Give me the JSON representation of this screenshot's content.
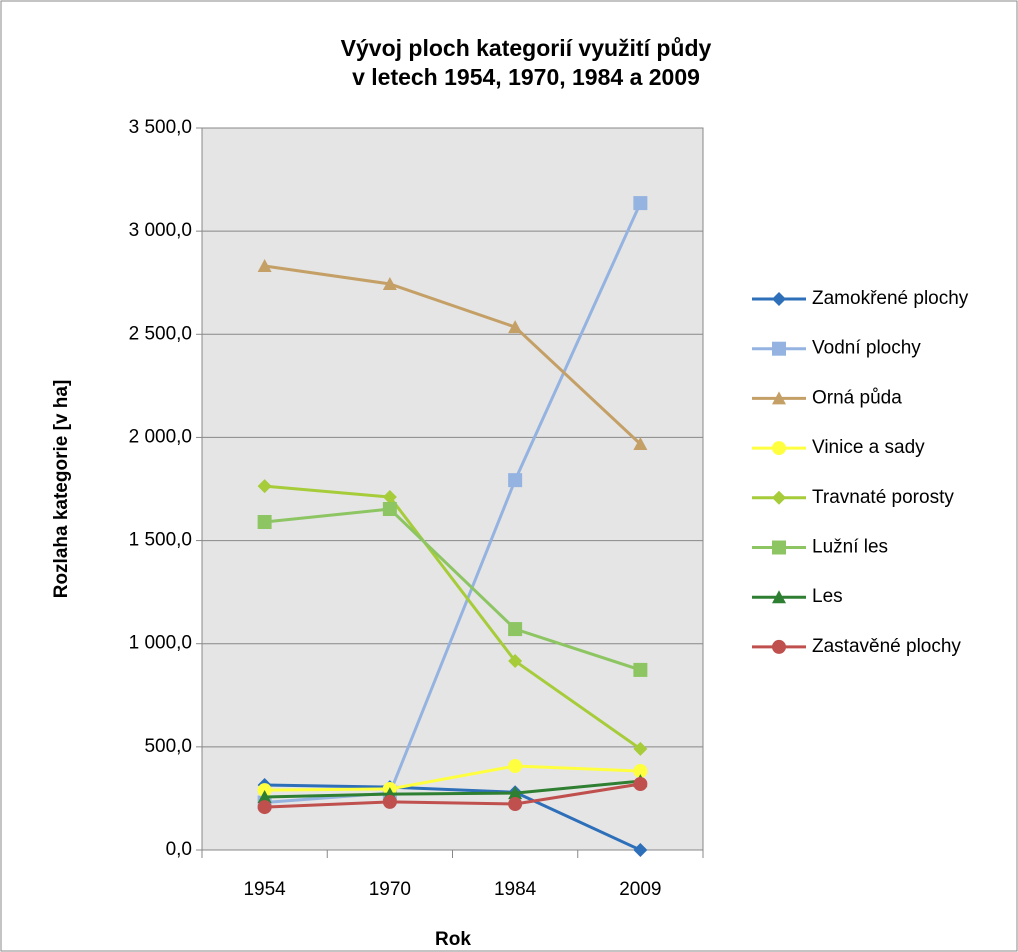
{
  "chart_data": {
    "type": "line",
    "title": [
      "Vývoj ploch kategorií využití půdy",
      "v letech 1954, 1970, 1984 a 2009"
    ],
    "y_label": "Rozlaha kategorie [v ha]",
    "x_label": "Rok",
    "categories": [
      "1954",
      "1970",
      "1984",
      "2009"
    ],
    "ylim": [
      0,
      3500
    ],
    "yticks": [
      {
        "value": 0,
        "label": "0,0"
      },
      {
        "value": 500,
        "label": "500,0"
      },
      {
        "value": 1000,
        "label": "1 000,0"
      },
      {
        "value": 1500,
        "label": "1 500,0"
      },
      {
        "value": 2000,
        "label": "2 000,0"
      },
      {
        "value": 2500,
        "label": "2 500,0"
      },
      {
        "value": 3000,
        "label": "3 000,0"
      },
      {
        "value": 3500,
        "label": "3 500,0"
      }
    ],
    "grid": true,
    "legend": "right",
    "series": [
      {
        "name": "Zamokřené plochy",
        "color": "#2e6fba",
        "marker": "diamond",
        "values": [
          315,
          305,
          280,
          0
        ]
      },
      {
        "name": "Vodní plochy",
        "color": "#95b3e0",
        "marker": "square",
        "values": [
          230,
          276,
          1793,
          3136
        ]
      },
      {
        "name": "Orná půda",
        "color": "#c4a067",
        "marker": "triangle",
        "values": [
          2831,
          2744,
          2535,
          1968
        ]
      },
      {
        "name": "Vinice a sady",
        "color": "#ffff40",
        "marker": "circle",
        "values": [
          290,
          296,
          407,
          383
        ]
      },
      {
        "name": "Travnaté porosty",
        "color": "#a6cc3a",
        "marker": "diamond",
        "values": [
          1764,
          1711,
          916,
          490
        ]
      },
      {
        "name": "Lužní les",
        "color": "#8dc563",
        "marker": "square",
        "values": [
          1590,
          1653,
          1071,
          873
        ]
      },
      {
        "name": "Les",
        "color": "#2f7f32",
        "marker": "triangle",
        "values": [
          257,
          271,
          276,
          334
        ]
      },
      {
        "name": "Zastavěné plochy",
        "color": "#c0504d",
        "marker": "circle",
        "values": [
          208,
          233,
          223,
          320
        ]
      }
    ]
  }
}
